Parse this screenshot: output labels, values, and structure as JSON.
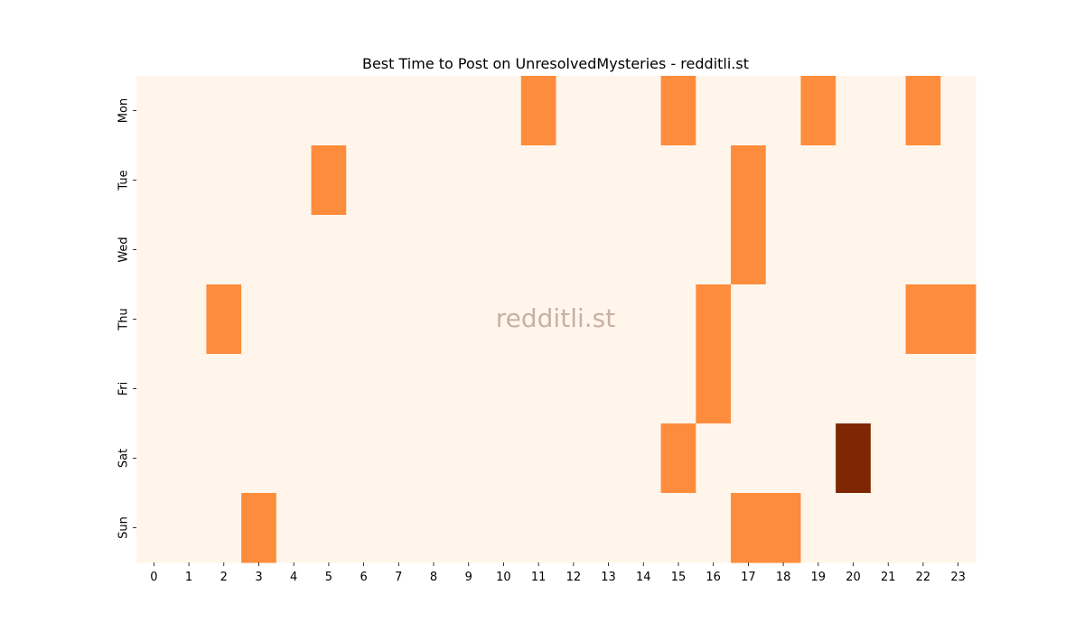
{
  "chart_data": {
    "type": "heatmap",
    "title": "Best Time to Post on UnresolvedMysteries - redditli.st",
    "watermark": "redditli.st",
    "x_categories": [
      "0",
      "1",
      "2",
      "3",
      "4",
      "5",
      "6",
      "7",
      "8",
      "9",
      "10",
      "11",
      "12",
      "13",
      "14",
      "15",
      "16",
      "17",
      "18",
      "19",
      "20",
      "21",
      "22",
      "23"
    ],
    "y_categories": [
      "Mon",
      "Tue",
      "Wed",
      "Thu",
      "Fri",
      "Sat",
      "Sun"
    ],
    "xlabel": "",
    "ylabel": "",
    "colormap": "Oranges",
    "colors": {
      "low": "#fff5eb",
      "mid": "#fd8d3c",
      "high": "#7f2704"
    },
    "values": [
      [
        0,
        0,
        0,
        0,
        0,
        0,
        0,
        0,
        0,
        0,
        0,
        1,
        0,
        0,
        0,
        1,
        0,
        0,
        0,
        1,
        0,
        0,
        1,
        0
      ],
      [
        0,
        0,
        0,
        0,
        0,
        1,
        0,
        0,
        0,
        0,
        0,
        0,
        0,
        0,
        0,
        0,
        0,
        1,
        0,
        0,
        0,
        0,
        0,
        0
      ],
      [
        0,
        0,
        0,
        0,
        0,
        0,
        0,
        0,
        0,
        0,
        0,
        0,
        0,
        0,
        0,
        0,
        0,
        1,
        0,
        0,
        0,
        0,
        0,
        0
      ],
      [
        0,
        0,
        1,
        0,
        0,
        0,
        0,
        0,
        0,
        0,
        0,
        0,
        0,
        0,
        0,
        0,
        1,
        0,
        0,
        0,
        0,
        0,
        1,
        1
      ],
      [
        0,
        0,
        0,
        0,
        0,
        0,
        0,
        0,
        0,
        0,
        0,
        0,
        0,
        0,
        0,
        0,
        1,
        0,
        0,
        0,
        0,
        0,
        0,
        0
      ],
      [
        0,
        0,
        0,
        0,
        0,
        0,
        0,
        0,
        0,
        0,
        0,
        0,
        0,
        0,
        0,
        1,
        0,
        0,
        0,
        0,
        2,
        0,
        0,
        0
      ],
      [
        0,
        0,
        0,
        1,
        0,
        0,
        0,
        0,
        0,
        0,
        0,
        0,
        0,
        0,
        0,
        0,
        0,
        1,
        1,
        0,
        0,
        0,
        0,
        0
      ]
    ]
  }
}
